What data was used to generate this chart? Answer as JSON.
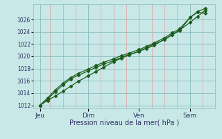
{
  "xlabel": "Pression niveau de la mer( hPa )",
  "background_color": "#c8e8e8",
  "plot_bg_color": "#c8e8e8",
  "grid_major_color": "#88bbbb",
  "grid_minor_color": "#ddaaaa",
  "line_color": "#1a5c1a",
  "ylim": [
    1011.5,
    1028.5
  ],
  "yticks": [
    1012,
    1014,
    1016,
    1018,
    1020,
    1022,
    1024,
    1026
  ],
  "xlim": [
    -0.08,
    3.5
  ],
  "day_positions": [
    0.05,
    1.0,
    2.0,
    3.0
  ],
  "day_labels": [
    "Jeu",
    "Dim",
    "Ven",
    "Sam"
  ],
  "vline_positions": [
    0.05,
    1.0,
    2.0,
    3.0
  ],
  "minor_x_positions": [
    0.25,
    0.5,
    0.75,
    1.25,
    1.5,
    1.75,
    2.25,
    2.5,
    2.75,
    3.25
  ],
  "series1_x": [
    0.05,
    0.2,
    0.35,
    0.5,
    0.65,
    0.8,
    1.0,
    1.15,
    1.3,
    1.5,
    1.65,
    1.8,
    2.0,
    2.15,
    2.3,
    2.5,
    2.65,
    2.8,
    3.0,
    3.15,
    3.3
  ],
  "series1_y": [
    1012.0,
    1012.8,
    1013.5,
    1014.3,
    1015.1,
    1015.9,
    1016.8,
    1017.5,
    1018.2,
    1019.1,
    1019.7,
    1020.2,
    1020.8,
    1021.3,
    1021.8,
    1022.8,
    1023.5,
    1024.3,
    1025.5,
    1026.5,
    1027.5
  ],
  "series2_x": [
    0.05,
    0.2,
    0.35,
    0.5,
    0.65,
    0.8,
    1.0,
    1.15,
    1.3,
    1.5,
    1.65,
    1.8,
    2.0,
    2.15,
    2.3,
    2.5,
    2.65,
    2.8,
    3.0,
    3.15,
    3.3
  ],
  "series2_y": [
    1012.0,
    1013.2,
    1014.5,
    1015.6,
    1016.5,
    1017.2,
    1017.9,
    1018.5,
    1019.0,
    1019.6,
    1020.1,
    1020.5,
    1021.1,
    1021.6,
    1022.2,
    1023.0,
    1023.8,
    1024.5,
    1026.3,
    1027.2,
    1027.0
  ],
  "series3_x": [
    0.05,
    0.2,
    0.35,
    0.5,
    0.65,
    0.8,
    1.0,
    1.15,
    1.3,
    1.5,
    1.65,
    1.8,
    2.0,
    2.15,
    2.3,
    2.5,
    2.65,
    2.8,
    3.0,
    3.15,
    3.3
  ],
  "series3_y": [
    1012.0,
    1013.0,
    1014.2,
    1015.3,
    1016.3,
    1016.9,
    1017.6,
    1018.2,
    1018.7,
    1019.3,
    1019.8,
    1020.3,
    1020.8,
    1021.4,
    1022.0,
    1022.7,
    1023.5,
    1024.2,
    1026.3,
    1027.3,
    1027.8
  ]
}
